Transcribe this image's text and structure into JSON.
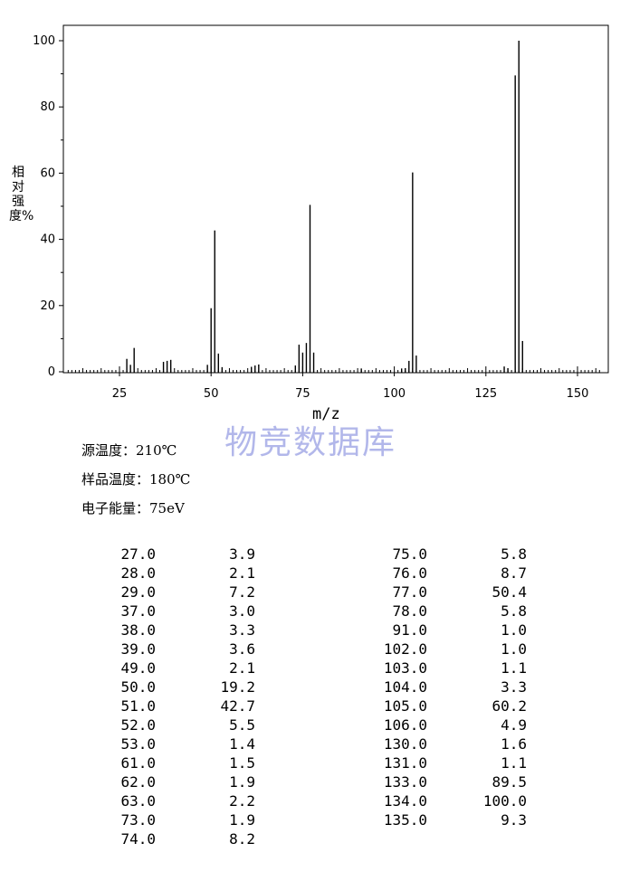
{
  "chart_data": {
    "type": "bar",
    "xlabel": "m/z",
    "ylabel": "相对强度%",
    "xlim": [
      10,
      157
    ],
    "ylim": [
      0,
      105
    ],
    "xticks_labeled": [
      25,
      50,
      75,
      100,
      125,
      150
    ],
    "yticks": [
      0,
      20,
      40,
      60,
      80,
      100
    ],
    "grid": false,
    "peaks_mz": [
      27,
      28,
      29,
      37,
      38,
      39,
      49,
      50,
      51,
      52,
      53,
      61,
      62,
      63,
      73,
      74,
      75,
      76,
      77,
      78,
      91,
      102,
      103,
      104,
      105,
      106,
      130,
      131,
      133,
      134,
      135
    ],
    "peaks_intensity": [
      3.9,
      2.1,
      7.2,
      3.0,
      3.3,
      3.6,
      2.1,
      19.2,
      42.7,
      5.5,
      1.4,
      1.5,
      1.9,
      2.2,
      1.9,
      8.2,
      5.8,
      8.7,
      50.4,
      5.8,
      1.0,
      1.0,
      1.1,
      3.3,
      60.2,
      4.9,
      1.6,
      1.1,
      89.5,
      100.0,
      9.3
    ]
  },
  "watermark": "物竞数据库",
  "conditions": [
    "源温度：210℃",
    "样品温度：180℃",
    "电子能量：75eV"
  ],
  "table_left": [
    [
      "27.0",
      "3.9"
    ],
    [
      "28.0",
      "2.1"
    ],
    [
      "29.0",
      "7.2"
    ],
    [
      "37.0",
      "3.0"
    ],
    [
      "38.0",
      "3.3"
    ],
    [
      "39.0",
      "3.6"
    ],
    [
      "49.0",
      "2.1"
    ],
    [
      "50.0",
      "19.2"
    ],
    [
      "51.0",
      "42.7"
    ],
    [
      "52.0",
      "5.5"
    ],
    [
      "53.0",
      "1.4"
    ],
    [
      "61.0",
      "1.5"
    ],
    [
      "62.0",
      "1.9"
    ],
    [
      "63.0",
      "2.2"
    ],
    [
      "73.0",
      "1.9"
    ],
    [
      "74.0",
      "8.2"
    ]
  ],
  "table_right": [
    [
      "75.0",
      "5.8"
    ],
    [
      "76.0",
      "8.7"
    ],
    [
      "77.0",
      "50.4"
    ],
    [
      "78.0",
      "5.8"
    ],
    [
      "91.0",
      "1.0"
    ],
    [
      "102.0",
      "1.0"
    ],
    [
      "103.0",
      "1.1"
    ],
    [
      "104.0",
      "3.3"
    ],
    [
      "105.0",
      "60.2"
    ],
    [
      "106.0",
      "4.9"
    ],
    [
      "130.0",
      "1.6"
    ],
    [
      "131.0",
      "1.1"
    ],
    [
      "133.0",
      "89.5"
    ],
    [
      "134.0",
      "100.0"
    ],
    [
      "135.0",
      "9.3"
    ]
  ]
}
